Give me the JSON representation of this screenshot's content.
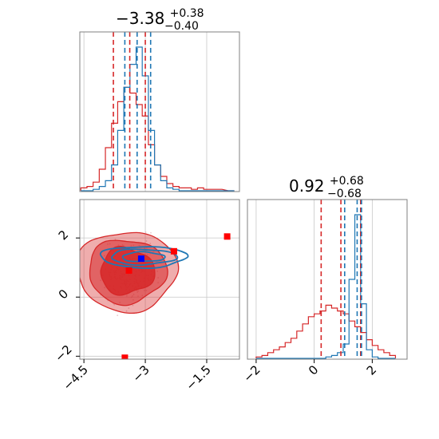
{
  "chart_data": {
    "type": "corner",
    "title": "",
    "colors": {
      "series_a": "#d62728",
      "series_b": "#1f77b4"
    },
    "series": [
      {
        "color_key": "series_a"
      },
      {
        "color_key": "series_b"
      }
    ],
    "panels": [
      {
        "id": "x_marginal",
        "type": "histogram",
        "title": {
          "main": "−3.38",
          "plus": "+0.38",
          "minus": "−0.40"
        },
        "xlim": [
          -4.6,
          -0.7
        ],
        "x_ticks": [
          -4.5,
          -3.0,
          -1.5
        ],
        "quantiles": {
          "series_a": [
            -3.78,
            -3.38,
            -3.0
          ],
          "series_b": [
            -3.5,
            -3.2,
            -2.87
          ]
        },
        "hist_x": [
          -4.5,
          -4.35,
          -4.2,
          -4.05,
          -3.9,
          -3.75,
          -3.6,
          -3.45,
          -3.3,
          -3.15,
          -3.0,
          -2.85,
          -2.7,
          -2.55,
          -2.4,
          -2.25,
          -2.1,
          -1.95,
          -1.8,
          -1.65,
          -1.5,
          -1.2,
          -0.9
        ],
        "hist_a": [
          0.02,
          0.03,
          0.06,
          0.15,
          0.3,
          0.47,
          0.62,
          0.72,
          0.68,
          0.6,
          0.52,
          0.32,
          0.18,
          0.1,
          0.05,
          0.03,
          0.02,
          0.02,
          0.01,
          0.02,
          0.01,
          0.01,
          0.0
        ],
        "hist_b": [
          0.0,
          0.0,
          0.01,
          0.03,
          0.07,
          0.18,
          0.42,
          0.72,
          0.88,
          1.0,
          0.8,
          0.42,
          0.18,
          0.07,
          0.02,
          0.01,
          0.0,
          0.0,
          0.0,
          0.0,
          0.0,
          0.0,
          0.0
        ]
      },
      {
        "id": "y_marginal",
        "type": "histogram",
        "title": {
          "main": "0.92",
          "plus": "+0.68",
          "minus": "−0.68"
        },
        "xlim": [
          -2.3,
          3.2
        ],
        "x_ticks": [
          -2,
          0,
          2
        ],
        "quantiles": {
          "series_a": [
            0.24,
            0.92,
            1.6
          ],
          "series_b": [
            1.05,
            1.48,
            1.63
          ]
        },
        "hist_x": [
          -1.9,
          -1.7,
          -1.5,
          -1.3,
          -1.1,
          -0.9,
          -0.7,
          -0.5,
          -0.3,
          -0.1,
          0.1,
          0.3,
          0.5,
          0.7,
          0.9,
          1.1,
          1.3,
          1.5,
          1.7,
          1.9,
          2.1,
          2.3,
          2.5,
          2.7
        ],
        "hist_a": [
          0.01,
          0.02,
          0.04,
          0.06,
          0.08,
          0.11,
          0.14,
          0.19,
          0.24,
          0.29,
          0.31,
          0.33,
          0.37,
          0.35,
          0.33,
          0.31,
          0.26,
          0.22,
          0.18,
          0.13,
          0.09,
          0.06,
          0.04,
          0.02
        ],
        "hist_b": [
          0.0,
          0.0,
          0.0,
          0.0,
          0.0,
          0.0,
          0.0,
          0.0,
          0.0,
          0.0,
          0.0,
          0.0,
          0.01,
          0.02,
          0.04,
          0.1,
          0.55,
          1.0,
          0.38,
          0.06,
          0.01,
          0.0,
          0.0,
          0.0
        ]
      },
      {
        "id": "joint",
        "type": "contour",
        "xlim": [
          -4.6,
          -0.7
        ],
        "ylim": [
          -2.1,
          3.3
        ],
        "x_ticks": [
          -4.5,
          -3.0,
          -1.5
        ],
        "y_ticks": [
          -2,
          0,
          2
        ],
        "points": {
          "series_a": [
            [
              -1.0,
              2.05
            ],
            [
              -2.3,
              1.55
            ],
            [
              -3.4,
              0.9
            ],
            [
              -3.5,
              -2.05
            ]
          ],
          "series_b": [
            [
              -3.1,
              1.3
            ]
          ]
        }
      }
    ]
  }
}
